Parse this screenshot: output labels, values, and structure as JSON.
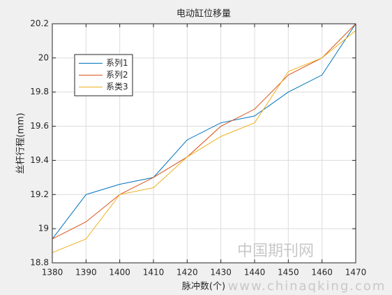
{
  "chart_data": {
    "type": "line",
    "title": "电动缸位移量",
    "x_label": "脉冲数(个)",
    "y_label": "丝杆行程(mm)",
    "x": [
      1380,
      1390,
      1400,
      1410,
      1420,
      1430,
      1440,
      1450,
      1460,
      1470
    ],
    "series": [
      {
        "name": "系列1",
        "color": "#0072bd",
        "values": [
          18.94,
          19.2,
          19.26,
          19.3,
          19.52,
          19.62,
          19.66,
          19.8,
          19.9,
          20.2
        ]
      },
      {
        "name": "系列2",
        "color": "#d95319",
        "values": [
          18.94,
          19.04,
          19.2,
          19.3,
          19.42,
          19.6,
          19.7,
          19.9,
          20.0,
          20.2
        ]
      },
      {
        "name": "系类3",
        "color": "#edb120",
        "values": [
          18.86,
          18.94,
          19.2,
          19.24,
          19.42,
          19.54,
          19.62,
          19.92,
          20.0,
          20.16
        ]
      }
    ],
    "xlim": [
      1380,
      1470
    ],
    "xticks": [
      1380,
      1390,
      1400,
      1410,
      1420,
      1430,
      1440,
      1450,
      1460,
      1470
    ],
    "ylim": [
      18.8,
      20.2
    ],
    "yticks": [
      18.8,
      19,
      19.2,
      19.4,
      19.6,
      19.8,
      20,
      20.2
    ],
    "grid": true,
    "legend": "northwest"
  },
  "watermark": {
    "name": "中国期刊网",
    "url": "www.chinaqking.com"
  }
}
